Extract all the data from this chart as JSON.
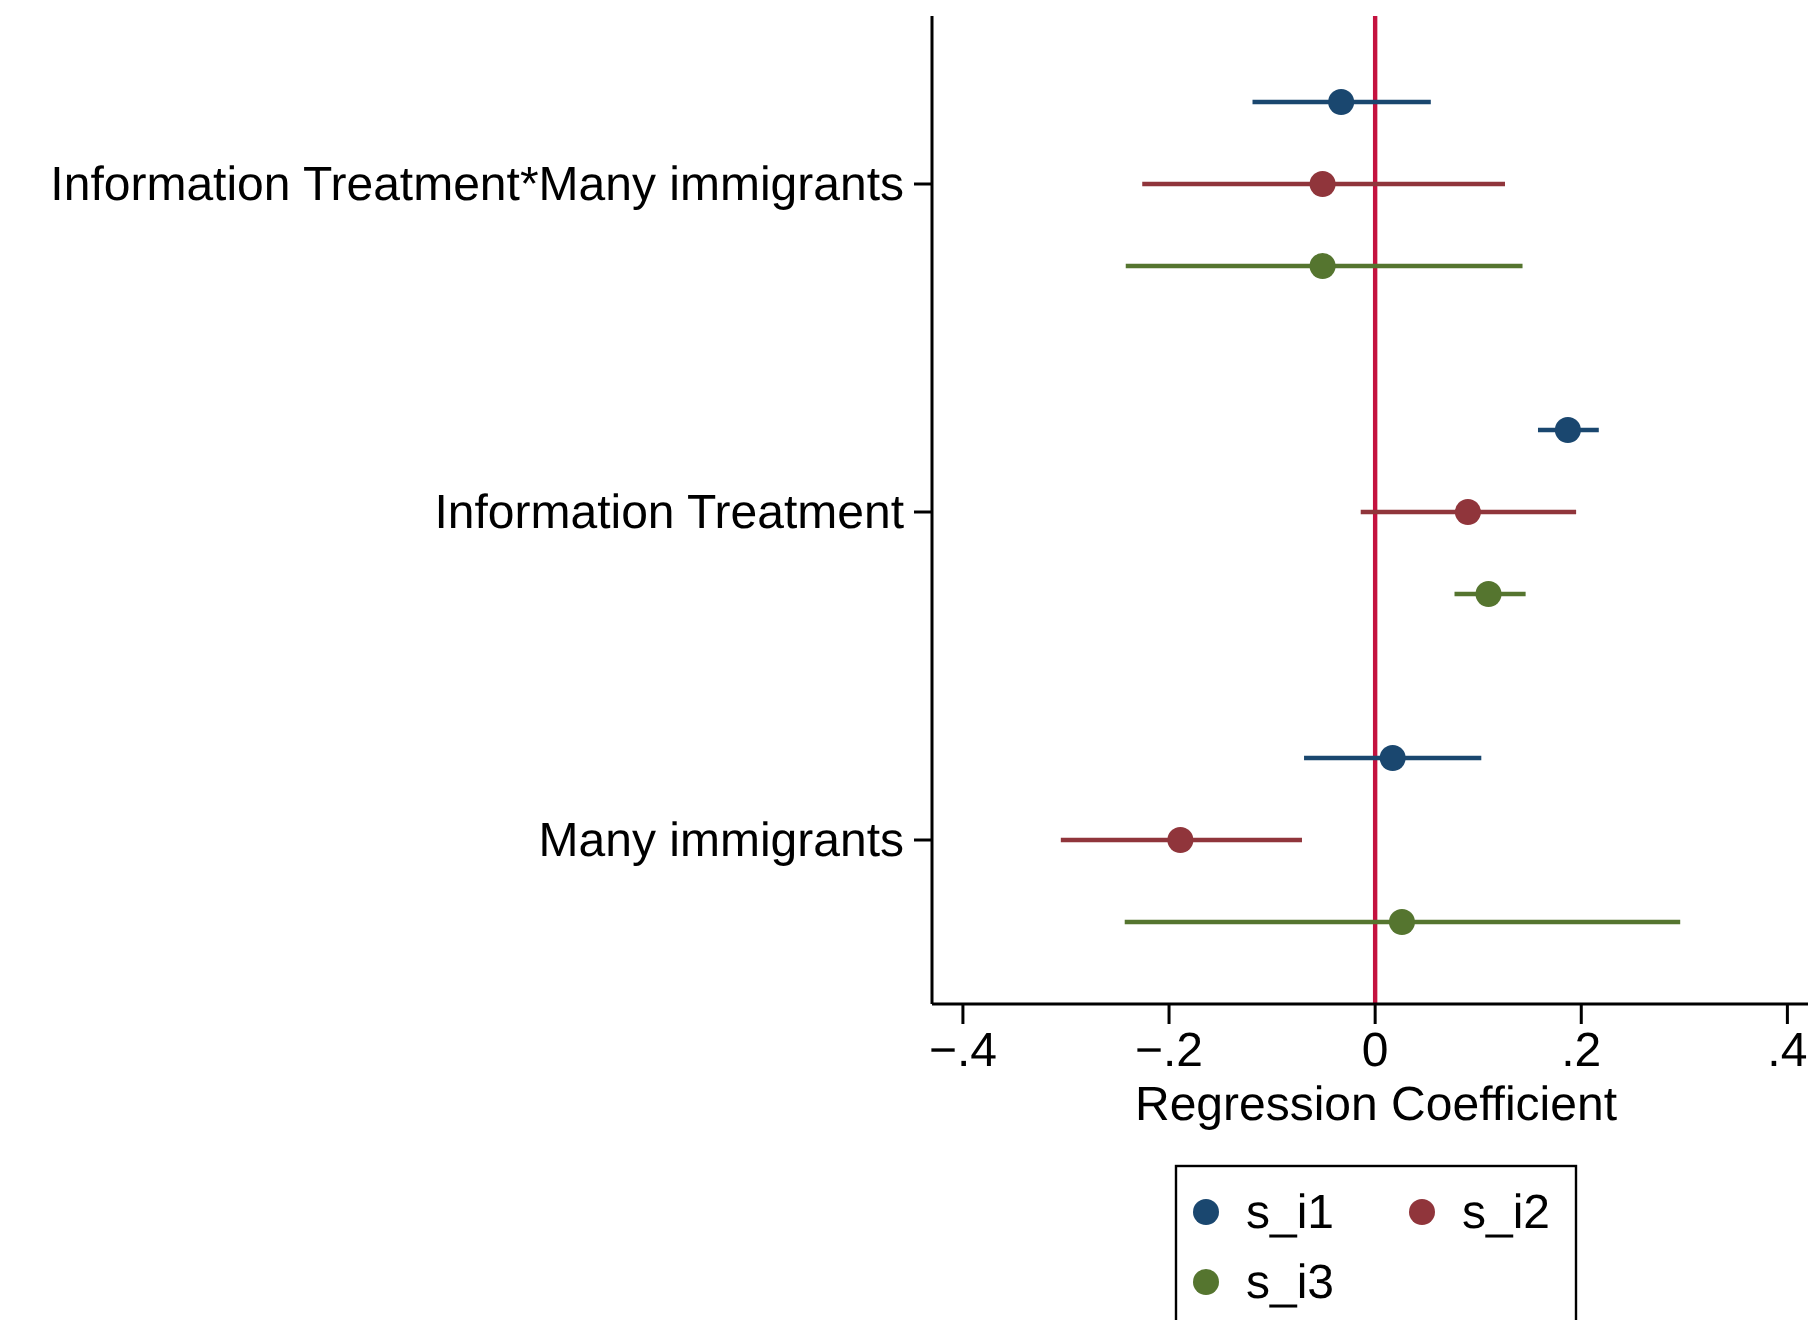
{
  "chart_data": {
    "type": "scatter",
    "orientation": "horizontal",
    "xlabel": "Regression Coefficient",
    "categories": [
      "Information Treatment*Many immigrants",
      "Information Treatment",
      "Many immigrants"
    ],
    "series": [
      {
        "name": "s_i1",
        "color": "#1a476f",
        "values": [
          -0.033,
          0.187,
          0.017
        ],
        "errors": [
          [
            -0.119,
            0.054
          ],
          [
            0.158,
            0.217
          ],
          [
            -0.069,
            0.103
          ]
        ]
      },
      {
        "name": "s_i2",
        "color": "#90353b",
        "values": [
          -0.051,
          0.09,
          -0.189
        ],
        "errors": [
          [
            -0.226,
            0.126
          ],
          [
            -0.014,
            0.195
          ],
          [
            -0.305,
            -0.071
          ]
        ]
      },
      {
        "name": "s_i3",
        "color": "#55752f",
        "values": [
          -0.051,
          0.11,
          0.026
        ],
        "errors": [
          [
            -0.242,
            0.143
          ],
          [
            0.077,
            0.146
          ],
          [
            -0.243,
            0.296
          ]
        ]
      }
    ],
    "xlim": [
      -0.43,
      0.42
    ],
    "xticks": [
      {
        "value": -0.4,
        "label": "−.4"
      },
      {
        "value": -0.2,
        "label": "−.2"
      },
      0,
      {
        "value": 0.2,
        "label": ".2"
      },
      {
        "value": 0.4,
        "label": ".4"
      }
    ],
    "ref_lines": [
      {
        "axis": "x",
        "value": 0,
        "color": "#c4123f"
      }
    ],
    "marker": "circle",
    "legend": "bottom"
  }
}
